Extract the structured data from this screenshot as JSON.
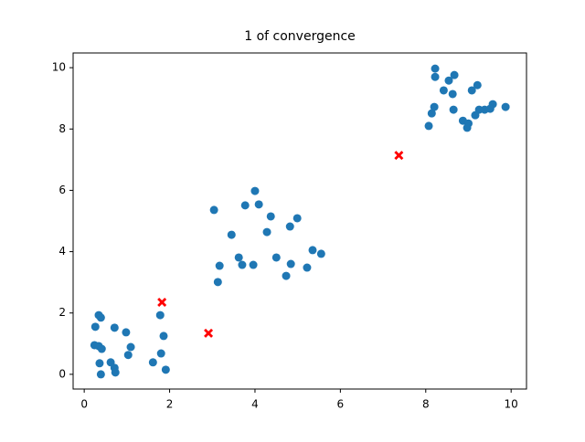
{
  "chart_data": {
    "type": "scatter",
    "title": "1  of convergence",
    "xlim": [
      -0.26,
      10.36
    ],
    "ylim": [
      -0.48,
      10.48
    ],
    "xticks": [
      0,
      2,
      4,
      6,
      8,
      10
    ],
    "yticks": [
      0,
      2,
      4,
      6,
      8,
      10
    ],
    "series": [
      {
        "color": "#1f77b4",
        "marker": "o",
        "x": [
          0.34,
          0.39,
          0.26,
          0.71,
          0.98,
          0.24,
          0.34,
          0.41,
          1.09,
          1.03,
          0.36,
          0.62,
          0.71,
          0.73,
          0.39,
          1.78,
          1.86,
          1.8,
          1.61,
          1.91,
          4.0,
          3.04,
          3.77,
          4.09,
          4.37,
          4.99,
          4.82,
          3.45,
          4.28,
          5.35,
          5.55,
          3.62,
          4.5,
          3.7,
          3.96,
          4.84,
          3.17,
          5.22,
          4.73,
          3.13,
          8.22,
          8.22,
          8.67,
          8.54,
          8.42,
          8.63,
          9.21,
          9.08,
          8.2,
          8.14,
          9.57,
          9.87,
          8.65,
          9.25,
          9.38,
          9.51,
          9.16,
          8.87,
          9.0,
          8.97,
          8.07
        ],
        "values": [
          1.93,
          1.85,
          1.55,
          1.52,
          1.37,
          0.95,
          0.92,
          0.83,
          0.89,
          0.63,
          0.36,
          0.39,
          0.21,
          0.06,
          0.0,
          1.93,
          1.25,
          0.68,
          0.39,
          0.15,
          5.98,
          5.36,
          5.51,
          5.54,
          5.15,
          5.09,
          4.82,
          4.55,
          4.64,
          4.05,
          3.93,
          3.81,
          3.81,
          3.57,
          3.57,
          3.6,
          3.54,
          3.48,
          3.21,
          3.01,
          9.97,
          9.7,
          9.76,
          9.58,
          9.26,
          9.14,
          9.43,
          9.26,
          8.72,
          8.51,
          8.81,
          8.72,
          8.63,
          8.63,
          8.63,
          8.66,
          8.45,
          8.27,
          8.18,
          8.04,
          8.1
        ]
      },
      {
        "color": "#ff0000",
        "marker": "X",
        "x": [
          1.82,
          2.91,
          7.37
        ],
        "values": [
          2.35,
          1.34,
          7.14
        ]
      }
    ]
  }
}
